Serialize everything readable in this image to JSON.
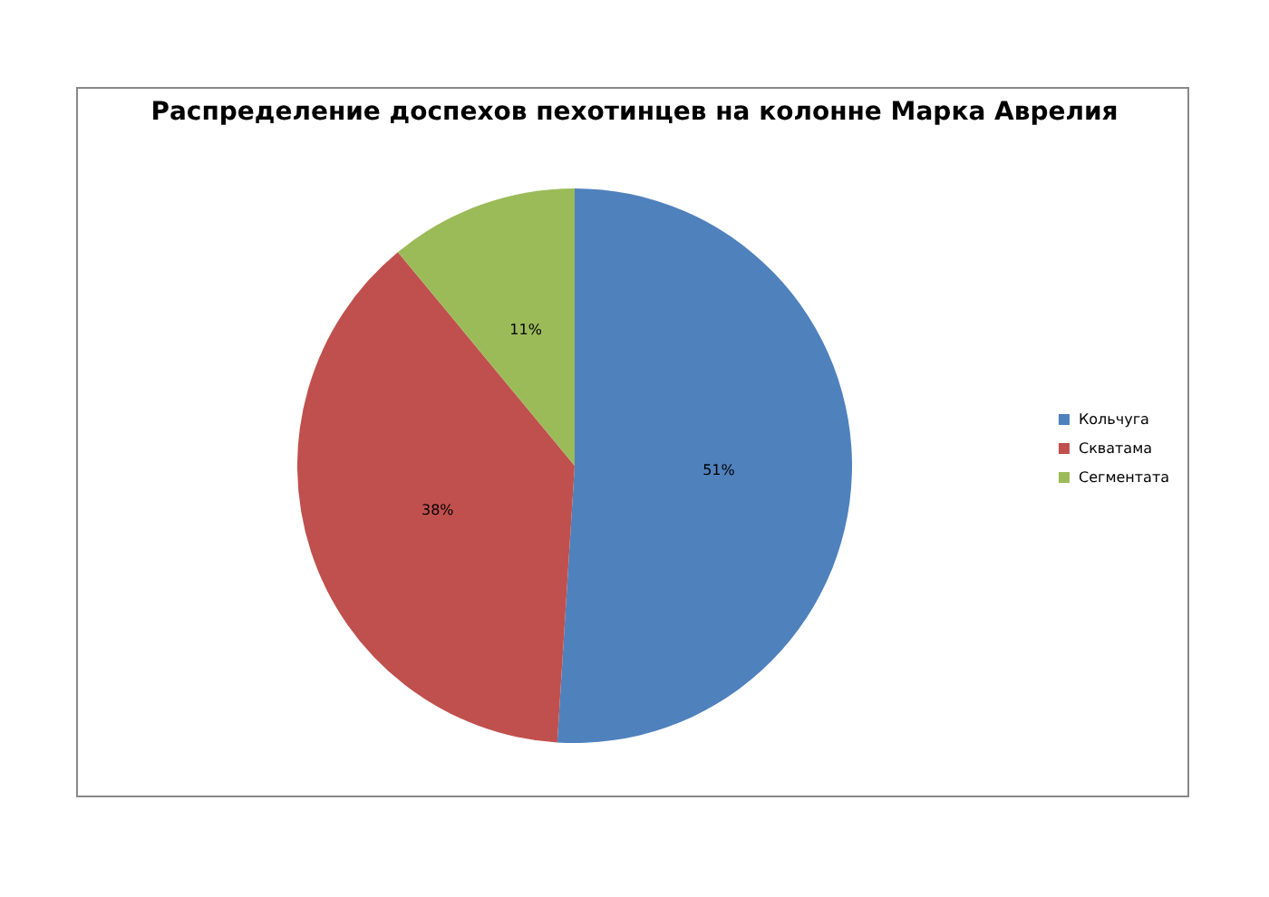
{
  "chart_data": {
    "type": "pie",
    "title": "Распределение доспехов пехотинцев на колонне Марка Аврелия",
    "categories": [
      "Кольчуга",
      "Скватама",
      "Сегментата"
    ],
    "values": [
      51,
      38,
      11
    ],
    "colors": [
      "#4f81bd",
      "#c0504d",
      "#9bbb59"
    ],
    "value_labels": [
      "51%",
      "38%",
      "11%"
    ],
    "legend": "right"
  }
}
